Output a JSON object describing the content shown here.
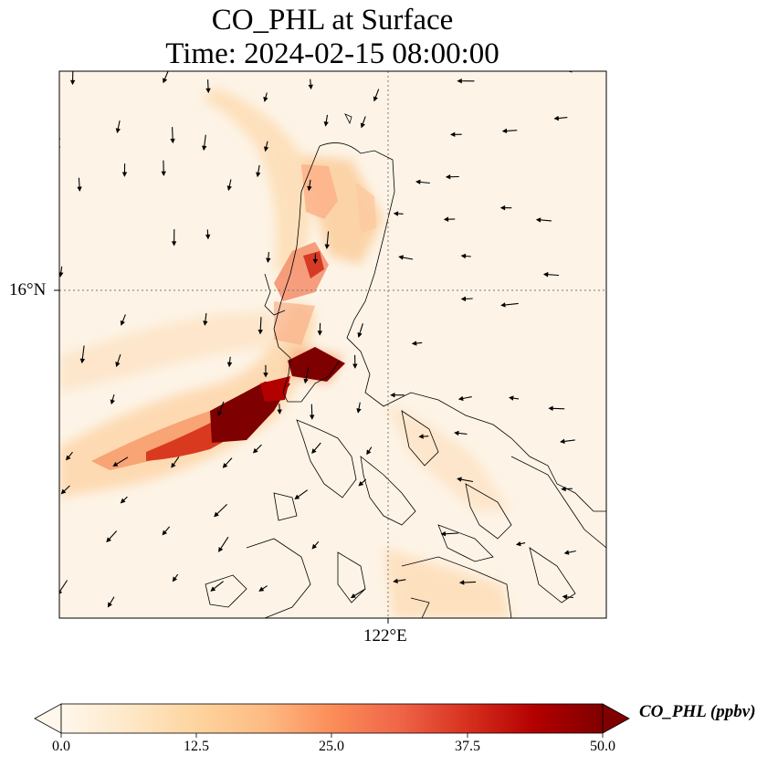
{
  "title_line1": "CO_PHL at Surface",
  "title_line2": "Time: 2024-02-15 08:00:00",
  "map": {
    "lat_label": "16°N",
    "lon_label": "122°E",
    "gridlines": "dotted"
  },
  "colorbar": {
    "label": "CO_PHL (ppbv)",
    "ticks": [
      "0.0",
      "12.5",
      "25.0",
      "37.5",
      "50.0"
    ],
    "vmin": 0,
    "vmax": 50,
    "extend": "both",
    "colormap": "OrRd",
    "colors": [
      "#fff7ec",
      "#fee8c8",
      "#fdd49e",
      "#fdbb84",
      "#fc8d59",
      "#ef6548",
      "#d7301f",
      "#b30000",
      "#7f0000"
    ]
  },
  "colors": {
    "land_outline": "#000000",
    "wind_arrows": "#000000",
    "background_field": "#fdf3e6"
  }
}
